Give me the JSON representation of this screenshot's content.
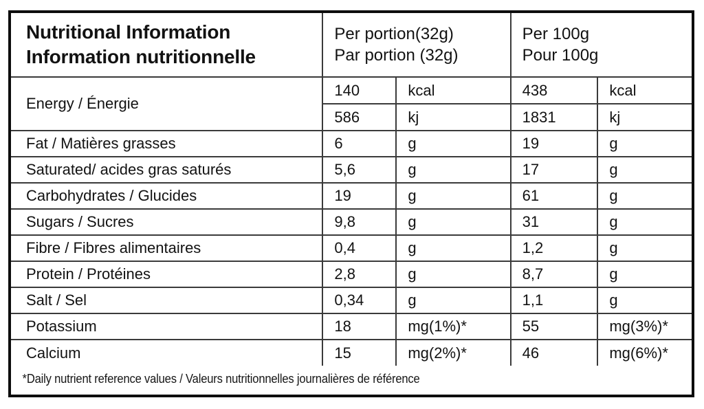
{
  "header": {
    "title_en": "Nutritional Information",
    "title_fr": "Information nutritionnelle",
    "col_portion_en": "Per portion(32g)",
    "col_portion_fr": "Par portion (32g)",
    "col_100g_en": "Per 100g",
    "col_100g_fr": "Pour 100g"
  },
  "rows": [
    {
      "label": "Energy / Énergie",
      "lines": [
        {
          "pp": "140",
          "ppu": "kcal",
          "p100": "438",
          "p100u": "kcal"
        },
        {
          "pp": "586",
          "ppu": "kj",
          "p100": "1831",
          "p100u": "kj"
        }
      ]
    },
    {
      "label": "Fat / Matières grasses",
      "lines": [
        {
          "pp": "6",
          "ppu": "g",
          "p100": "19",
          "p100u": "g"
        }
      ]
    },
    {
      "label": "Saturated/ acides gras saturés",
      "lines": [
        {
          "pp": "5,6",
          "ppu": "g",
          "p100": "17",
          "p100u": "g"
        }
      ]
    },
    {
      "label": "Carbohydrates / Glucides",
      "lines": [
        {
          "pp": "19",
          "ppu": "g",
          "p100": "61",
          "p100u": "g"
        }
      ]
    },
    {
      "label": "Sugars / Sucres",
      "lines": [
        {
          "pp": "9,8",
          "ppu": "g",
          "p100": "31",
          "p100u": "g"
        }
      ]
    },
    {
      "label": "Fibre / Fibres alimentaires",
      "lines": [
        {
          "pp": "0,4",
          "ppu": "g",
          "p100": "1,2",
          "p100u": "g"
        }
      ]
    },
    {
      "label": "Protein / Protéines",
      "lines": [
        {
          "pp": "2,8",
          "ppu": "g",
          "p100": "8,7",
          "p100u": "g"
        }
      ]
    },
    {
      "label": "Salt / Sel",
      "lines": [
        {
          "pp": "0,34",
          "ppu": "g",
          "p100": "1,1",
          "p100u": "g"
        }
      ]
    },
    {
      "label": "Potassium",
      "lines": [
        {
          "pp": "18",
          "ppu": "mg(1%)*",
          "p100": "55",
          "p100u": "mg(3%)*"
        }
      ]
    },
    {
      "label": "Calcium",
      "lines": [
        {
          "pp": "15",
          "ppu": "mg(2%)*",
          "p100": "46",
          "p100u": "mg(6%)*"
        }
      ]
    }
  ],
  "footnote": "*Daily nutrient reference values / Valeurs nutritionnelles journalières de référence",
  "colors": {
    "border_outer": "#0d0d0d",
    "border_inner": "#3a3a3a",
    "text": "#121212",
    "background": "#ffffff"
  }
}
